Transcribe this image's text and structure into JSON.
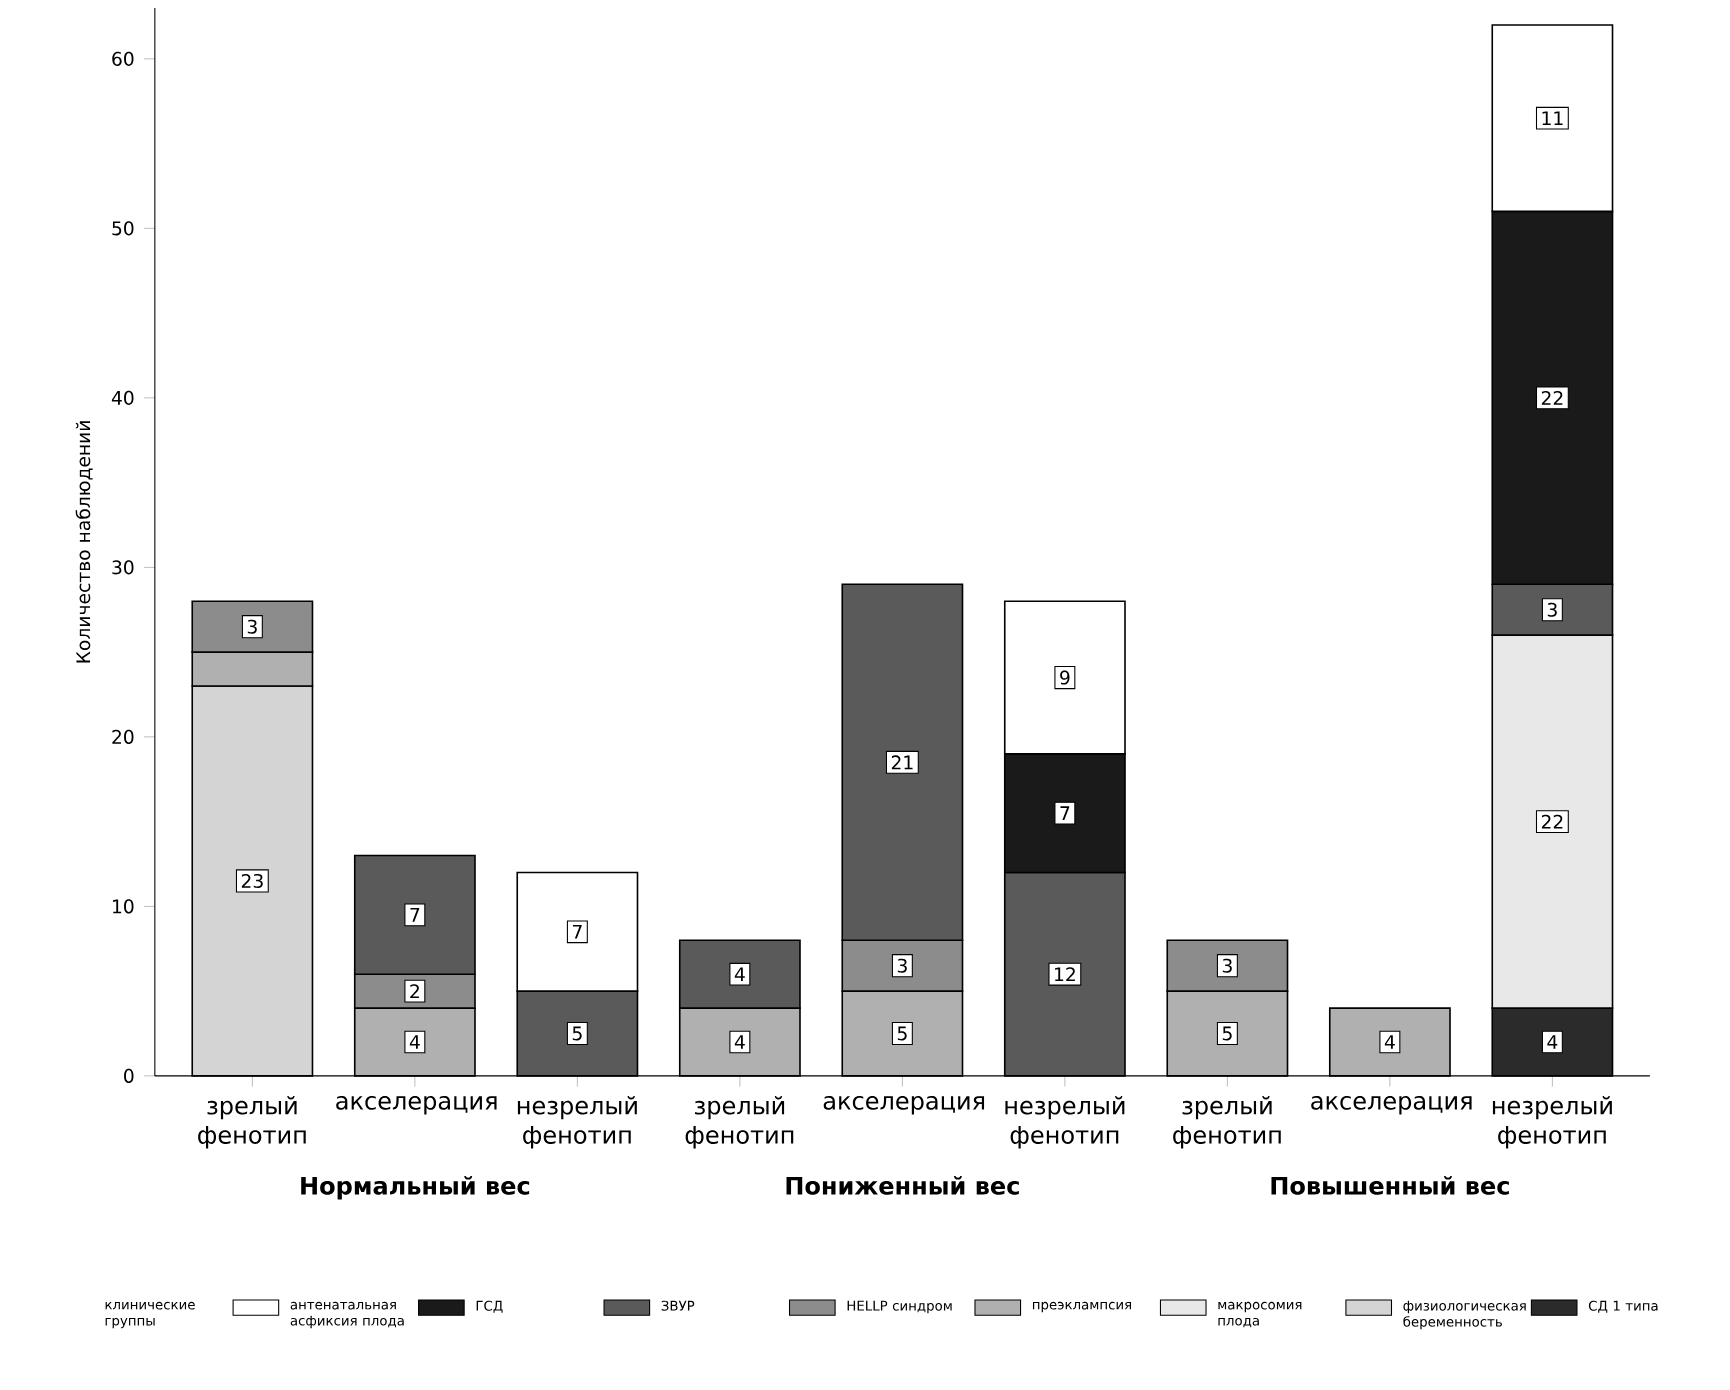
{
  "chart_data": {
    "type": "bar",
    "stacked": true,
    "ylabel": "Количество наблюдений",
    "legend_title": "клинические группы",
    "categories": [
      "зрелый фенотип",
      "акселерация",
      "незрелый фенотип",
      "зрелый фенотип",
      "акселерация",
      "незрелый фенотип",
      "зрелый фенотип",
      "акселерация",
      "незрелый фенотип"
    ],
    "annotations": [
      "Нормальный вес",
      "Пониженный вес",
      "Повышенный вес"
    ],
    "ylim": [
      0,
      63
    ],
    "yticks": [
      0,
      10,
      20,
      30,
      40,
      50,
      60
    ],
    "legend": "bottom",
    "grid": false,
    "series": [
      {
        "name": "СД 1 типа",
        "color": "#2b2b2b",
        "values": [
          null,
          null,
          null,
          null,
          null,
          null,
          null,
          null,
          4
        ],
        "value_labels": [
          null,
          null,
          null,
          null,
          null,
          null,
          null,
          null,
          "4"
        ]
      },
      {
        "name": "физиологическая беременность",
        "color": "#d4d4d4",
        "values": [
          23,
          null,
          null,
          null,
          null,
          null,
          null,
          null,
          null
        ],
        "value_labels": [
          "23",
          null,
          null,
          null,
          null,
          null,
          null,
          null,
          null
        ]
      },
      {
        "name": "макросомия плода",
        "color": "#e8e8e8",
        "values": [
          null,
          null,
          null,
          null,
          null,
          null,
          null,
          null,
          22
        ],
        "value_labels": [
          null,
          null,
          null,
          null,
          null,
          null,
          null,
          null,
          "22"
        ]
      },
      {
        "name": "преэклампсия",
        "color": "#b0b0b0",
        "values": [
          2,
          4,
          null,
          4,
          5,
          null,
          5,
          4,
          null
        ],
        "value_labels": [
          null,
          "4",
          null,
          "4",
          "5",
          null,
          "5",
          "4",
          null
        ]
      },
      {
        "name": "HELLP синдром",
        "color": "#8c8c8c",
        "values": [
          3,
          2,
          null,
          null,
          3,
          null,
          3,
          null,
          null
        ],
        "value_labels": [
          "3",
          "2",
          null,
          null,
          "3",
          null,
          "3",
          null,
          null
        ]
      },
      {
        "name": "ЗВУР",
        "color": "#5a5a5a",
        "values": [
          null,
          7,
          5,
          4,
          21,
          12,
          null,
          null,
          3
        ],
        "value_labels": [
          null,
          "7",
          "5",
          "4",
          "21",
          "12",
          null,
          null,
          "3"
        ]
      },
      {
        "name": "ГСД",
        "color": "#1a1a1a",
        "values": [
          null,
          null,
          null,
          null,
          null,
          7,
          null,
          null,
          22
        ],
        "value_labels": [
          null,
          null,
          null,
          null,
          null,
          "7",
          null,
          null,
          "22"
        ]
      },
      {
        "name": "антенатальная асфиксия плода",
        "color": "#ffffff",
        "values": [
          null,
          null,
          7,
          null,
          null,
          9,
          null,
          null,
          11
        ],
        "value_labels": [
          null,
          null,
          "7",
          null,
          null,
          "9",
          null,
          null,
          "11"
        ]
      }
    ]
  }
}
